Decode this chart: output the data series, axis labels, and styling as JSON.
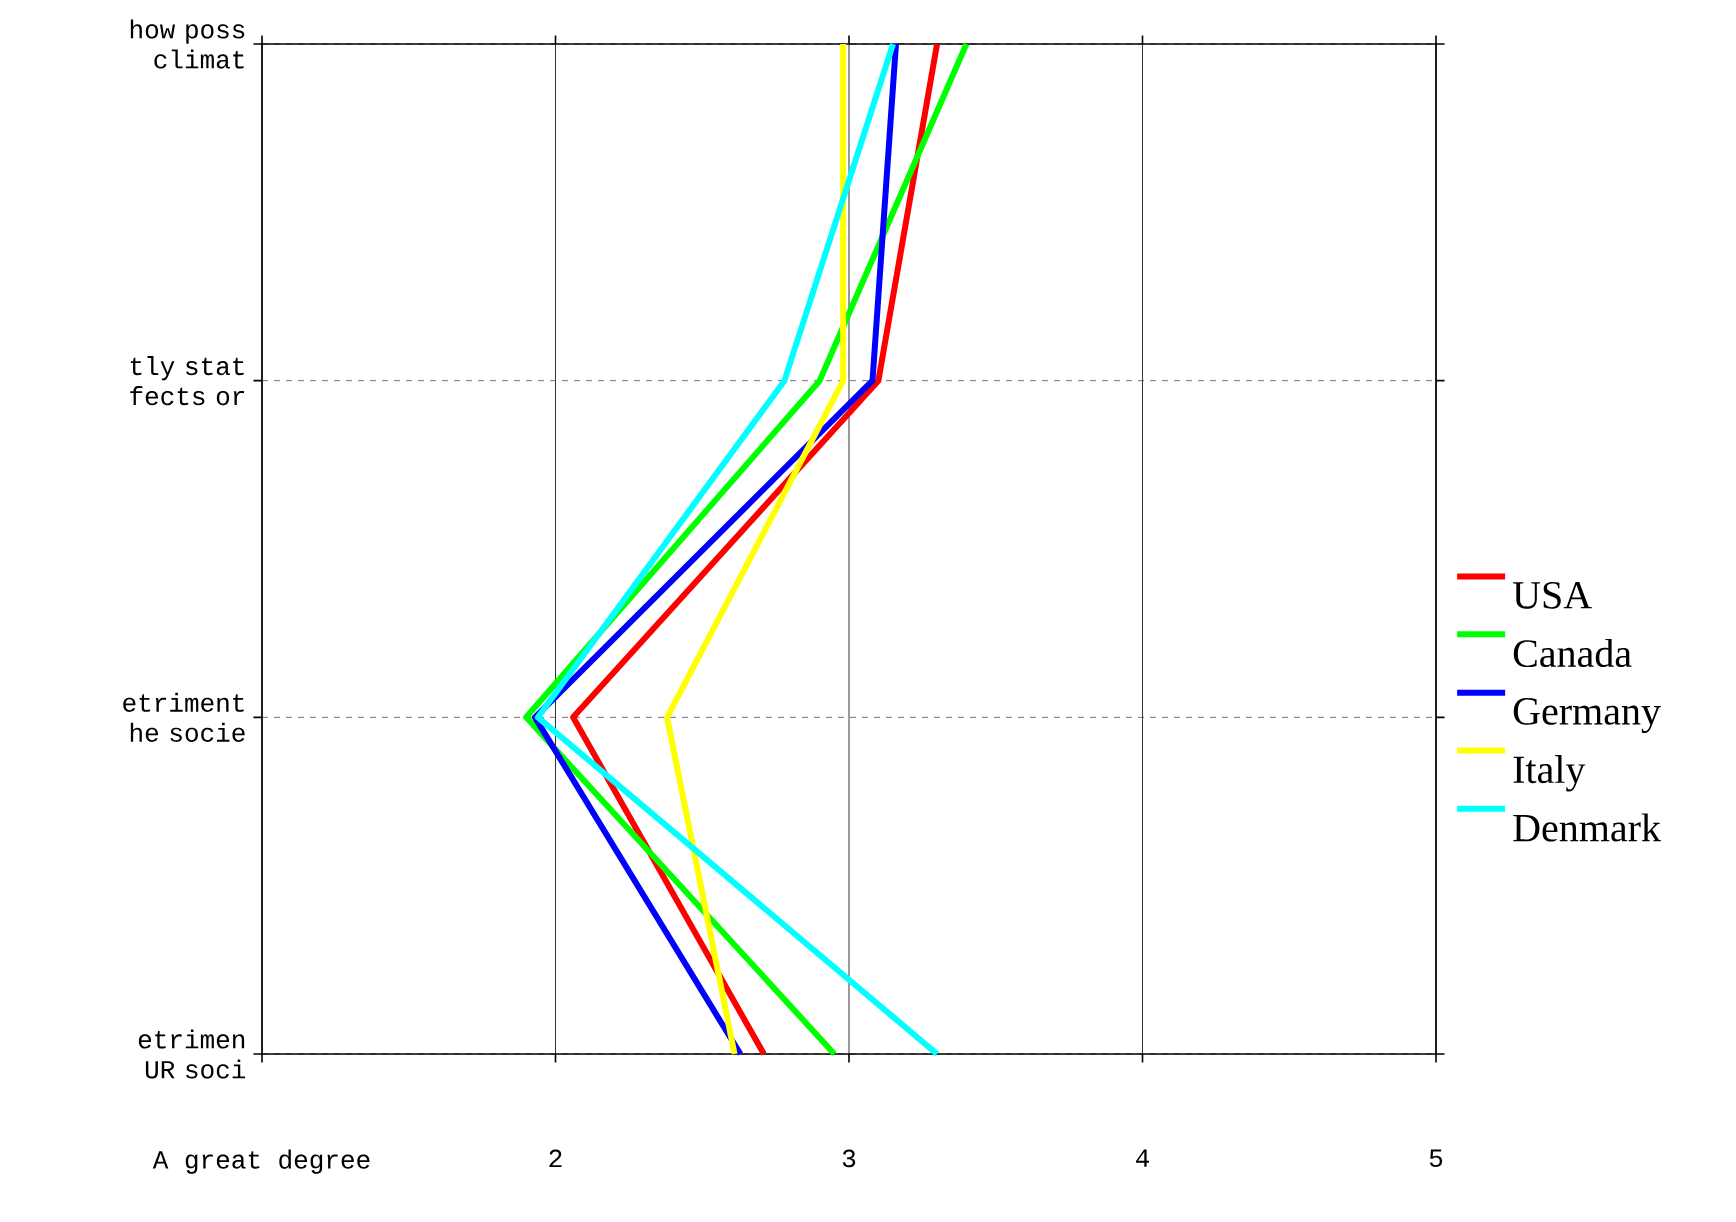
{
  "chart_data": {
    "type": "line",
    "orientation": "horizontal",
    "categories": [
      "how poss climat",
      "tly stat fects or",
      "etriment he socie",
      "etrimen UR soci"
    ],
    "xlim": [
      1,
      5
    ],
    "xticks": [
      {
        "value": 1,
        "label": "A great degree"
      },
      2,
      3,
      4,
      5
    ],
    "series": [
      {
        "name": "USA",
        "color": "#ff0000",
        "values": [
          3.3,
          3.1,
          2.06,
          2.71
        ]
      },
      {
        "name": "Canada",
        "color": "#00ff00",
        "values": [
          3.4,
          2.9,
          1.9,
          2.95
        ]
      },
      {
        "name": "Germany",
        "color": "#0000ff",
        "values": [
          3.16,
          3.08,
          1.93,
          2.63
        ]
      },
      {
        "name": "Italy",
        "color": "#ffff00",
        "values": [
          2.98,
          2.98,
          2.38,
          2.61
        ]
      },
      {
        "name": "Denmark",
        "color": "#00ffff",
        "values": [
          3.15,
          2.78,
          1.94,
          3.3
        ]
      }
    ],
    "grid": true,
    "legend": "right",
    "marker": "none",
    "line_style": "solid"
  }
}
